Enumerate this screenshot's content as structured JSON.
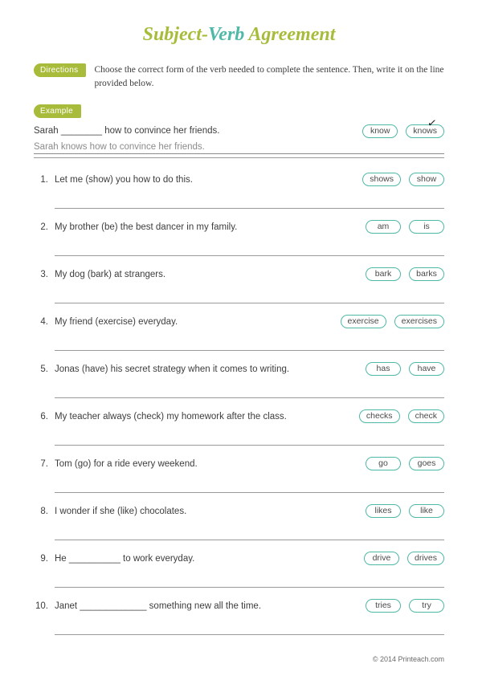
{
  "title": {
    "part1": "Subject-",
    "part2": "Verb",
    "part3": " Agreement"
  },
  "directions": {
    "label": "Directions",
    "text": "Choose the correct form of the verb needed to complete the sentence. Then, write it on the line provided below."
  },
  "example": {
    "label": "Example",
    "sentence": "Sarah ________ how to convince her friends.",
    "choices": [
      "know",
      "knows"
    ],
    "checked_index": 1,
    "answer": "Sarah knows how to convince her friends."
  },
  "questions": [
    {
      "num": "1.",
      "text": "Let me (show) you how to do this.",
      "choices": [
        "shows",
        "show"
      ]
    },
    {
      "num": "2.",
      "text": "My brother (be) the best dancer in my family.",
      "choices": [
        "am",
        "is"
      ]
    },
    {
      "num": "3.",
      "text": "My dog (bark) at strangers.",
      "choices": [
        "bark",
        "barks"
      ]
    },
    {
      "num": "4.",
      "text": "My friend (exercise) everyday.",
      "choices": [
        "exercise",
        "exercises"
      ]
    },
    {
      "num": "5.",
      "text": "Jonas (have) his secret strategy when it comes to writing.",
      "choices": [
        "has",
        "have"
      ]
    },
    {
      "num": "6.",
      "text": "My teacher always (check) my homework after the class.",
      "choices": [
        "checks",
        "check"
      ]
    },
    {
      "num": "7.",
      "text": "Tom (go) for a ride every weekend.",
      "choices": [
        "go",
        "goes"
      ]
    },
    {
      "num": "8.",
      "text": "I wonder if she (like) chocolates.",
      "choices": [
        "likes",
        "like"
      ]
    },
    {
      "num": "9.",
      "text": "He __________ to work everyday.",
      "choices": [
        "drive",
        "drives"
      ]
    },
    {
      "num": "10.",
      "text": "Janet _____________ something new all the time.",
      "choices": [
        "tries",
        "try"
      ]
    }
  ],
  "footer": "© 2014 Printeach.com",
  "colors": {
    "accent_green": "#a8bb3a",
    "accent_teal": "#4fb8a7",
    "text": "#3d3d3d",
    "muted": "#8b8b8b",
    "rule": "#9a9a9a"
  }
}
